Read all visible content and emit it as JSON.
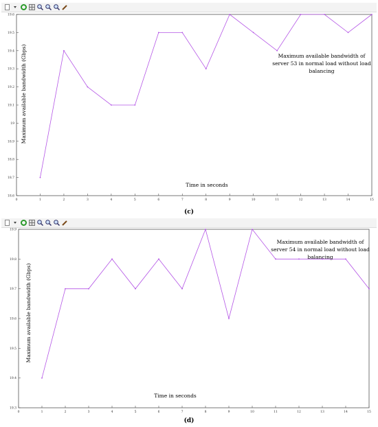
{
  "toolbar": {
    "icons": [
      "new-document-icon",
      "dropdown-arrow-icon",
      "refresh-icon",
      "grid-icon",
      "zoom-icon",
      "zoom-in-icon",
      "zoom-out-icon",
      "pencil-icon"
    ]
  },
  "chart_data": [
    {
      "type": "line",
      "caption": "(c)",
      "ylabel": "Maximum available bandwidth (Gbps)",
      "xlabel": "Time in seconds",
      "annotation_lines": [
        "Maximum available bandwidth of",
        "server 53 in normal load without load",
        "balancing"
      ],
      "x": [
        1,
        2,
        3,
        4,
        5,
        6,
        7,
        8,
        9,
        10,
        11,
        12,
        13,
        14,
        15
      ],
      "series": [
        {
          "values": [
            18.7,
            19.4,
            19.2,
            19.1,
            19.1,
            19.5,
            19.5,
            19.3,
            19.6,
            19.5,
            19.4,
            19.6,
            19.6,
            19.5,
            19.6
          ],
          "color": "#b455e6"
        }
      ],
      "xlim": [
        0,
        15
      ],
      "ylim": [
        18.6,
        19.6
      ],
      "xticks": [
        "0",
        "1",
        "2",
        "3",
        "4",
        "5",
        "6",
        "7",
        "8",
        "9",
        "10",
        "11",
        "12",
        "13",
        "14",
        "15"
      ],
      "yticks": [
        "18.6",
        "18.7",
        "18.8",
        "18.9",
        "19",
        "19.1",
        "19.2",
        "19.3",
        "19.4",
        "19.5",
        "19.6"
      ],
      "grid": false
    },
    {
      "type": "line",
      "caption": "(d)",
      "ylabel": "Maximum available bandwidth (Gbps)",
      "xlabel": "Time in seconds",
      "annotation_lines": [
        "Maximum available bandwidth of",
        "server 54 in normal load without load",
        "balancing"
      ],
      "x": [
        1,
        2,
        3,
        4,
        5,
        6,
        7,
        8,
        9,
        10,
        11,
        12,
        13,
        14,
        15
      ],
      "series": [
        {
          "values": [
            19.4,
            19.7,
            19.7,
            19.8,
            19.7,
            19.8,
            19.7,
            19.9,
            19.6,
            19.9,
            19.8,
            19.8,
            19.8,
            19.8,
            19.7
          ],
          "color": "#b455e6"
        }
      ],
      "xlim": [
        0,
        15
      ],
      "ylim": [
        19.3,
        19.9
      ],
      "xticks": [
        "0",
        "1",
        "2",
        "3",
        "4",
        "5",
        "6",
        "7",
        "8",
        "9",
        "10",
        "11",
        "12",
        "13",
        "14",
        "15"
      ],
      "yticks": [
        "19.3",
        "19.4",
        "19.5",
        "19.6",
        "19.7",
        "19.8",
        "19.9"
      ],
      "grid": false
    }
  ]
}
